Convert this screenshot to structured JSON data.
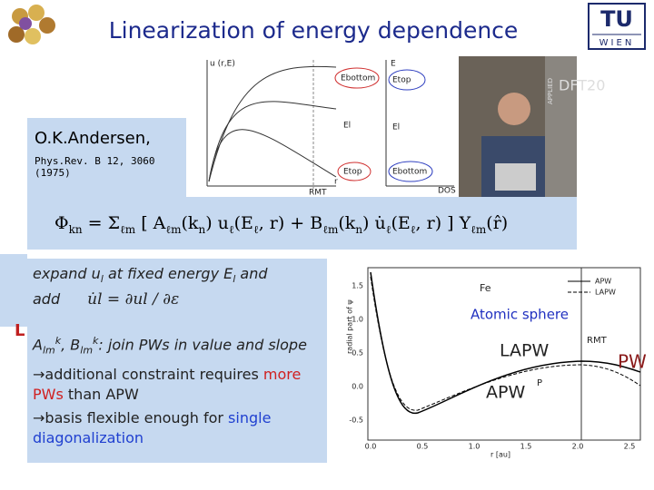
{
  "header": {
    "title": "Linearization of energy dependence",
    "logo_tu": "TU",
    "logo_wien": "WIEN"
  },
  "plot1": {
    "y_label": "u (r,E)",
    "e_bottom_left": "Ebottom",
    "e_l_left": "El",
    "e_top_left": "Etop",
    "r_mt": "RMT",
    "r": "r",
    "e_axis": "E",
    "e_top_right": "Etop",
    "e_l_right": "El",
    "e_bottom_right": "Ebottom",
    "dos": "DOS"
  },
  "photo": {
    "banner": "DFT20",
    "side": "APPLIED"
  },
  "author": {
    "name": "O.K.Andersen,",
    "ref_line1": "Phys.Rev. B 12, 3060",
    "ref_line2": "(1975)"
  },
  "formula": [
    {
      "t": "Φ",
      "sub": "kn"
    },
    {
      "t": " = Σ",
      "sub": "ℓm"
    },
    {
      "t": " [ A",
      "sub": "ℓm"
    },
    {
      "t": "(k",
      "sub": "n"
    },
    {
      "t": ") u",
      "sub": "ℓ"
    },
    {
      "t": "(E",
      "sub": "ℓ"
    },
    {
      "t": ", r) + B",
      "sub": "ℓm"
    },
    {
      "t": "(k",
      "sub": "n"
    },
    {
      "t": ") u̇",
      "sub": "ℓ"
    },
    {
      "t": "(E",
      "sub": "ℓ"
    },
    {
      "t": ", r) ] Y",
      "sub": "ℓm"
    },
    {
      "t": "(r̂)"
    }
  ],
  "side_letter": "L",
  "textbox": {
    "paragraphs": [
      [
        {
          "text": "expand u"
        },
        {
          "text": "l",
          "style": "sub"
        },
        {
          "text": " at fixed energy E"
        },
        {
          "text": "l",
          "style": "sub"
        },
        {
          "text": " and"
        },
        {
          "text": " add"
        }
      ],
      [
        {
          "text": "A"
        },
        {
          "text": "lm",
          "style": "sub"
        },
        {
          "text": "k",
          "style": "sup"
        },
        {
          "text": ", B"
        },
        {
          "text": "lm",
          "style": "sub"
        },
        {
          "text": "k",
          "style": "sup"
        },
        {
          "text": ": join PWs in value and slope"
        }
      ],
      [
        {
          "text": "→additional constraint requires "
        },
        {
          "text": "more PWs",
          "style": "red"
        },
        {
          "text": " than APW"
        }
      ],
      [
        {
          "text": "→basis flexible enough for "
        },
        {
          "text": "single diagonalization",
          "style": "blue"
        }
      ]
    ],
    "derivative": "u̇l = ∂ul / ∂ε"
  },
  "plot2": {
    "element": "Fe",
    "legend": [
      "APW",
      "LAPW"
    ],
    "atomic_sphere": "Atomic sphere",
    "lapw": "LAPW",
    "apw": "APW",
    "p": "P",
    "r_mt": "RMT",
    "pw": "PW",
    "x_label": "r [au]",
    "y_label": "radial part of ψ",
    "xticks": [
      "0.0",
      "0.5",
      "1.0",
      "1.5",
      "2.0",
      "2.5"
    ],
    "yticks": [
      "1.5",
      "1.0",
      "0.5",
      "0.0",
      "-0.5"
    ]
  }
}
